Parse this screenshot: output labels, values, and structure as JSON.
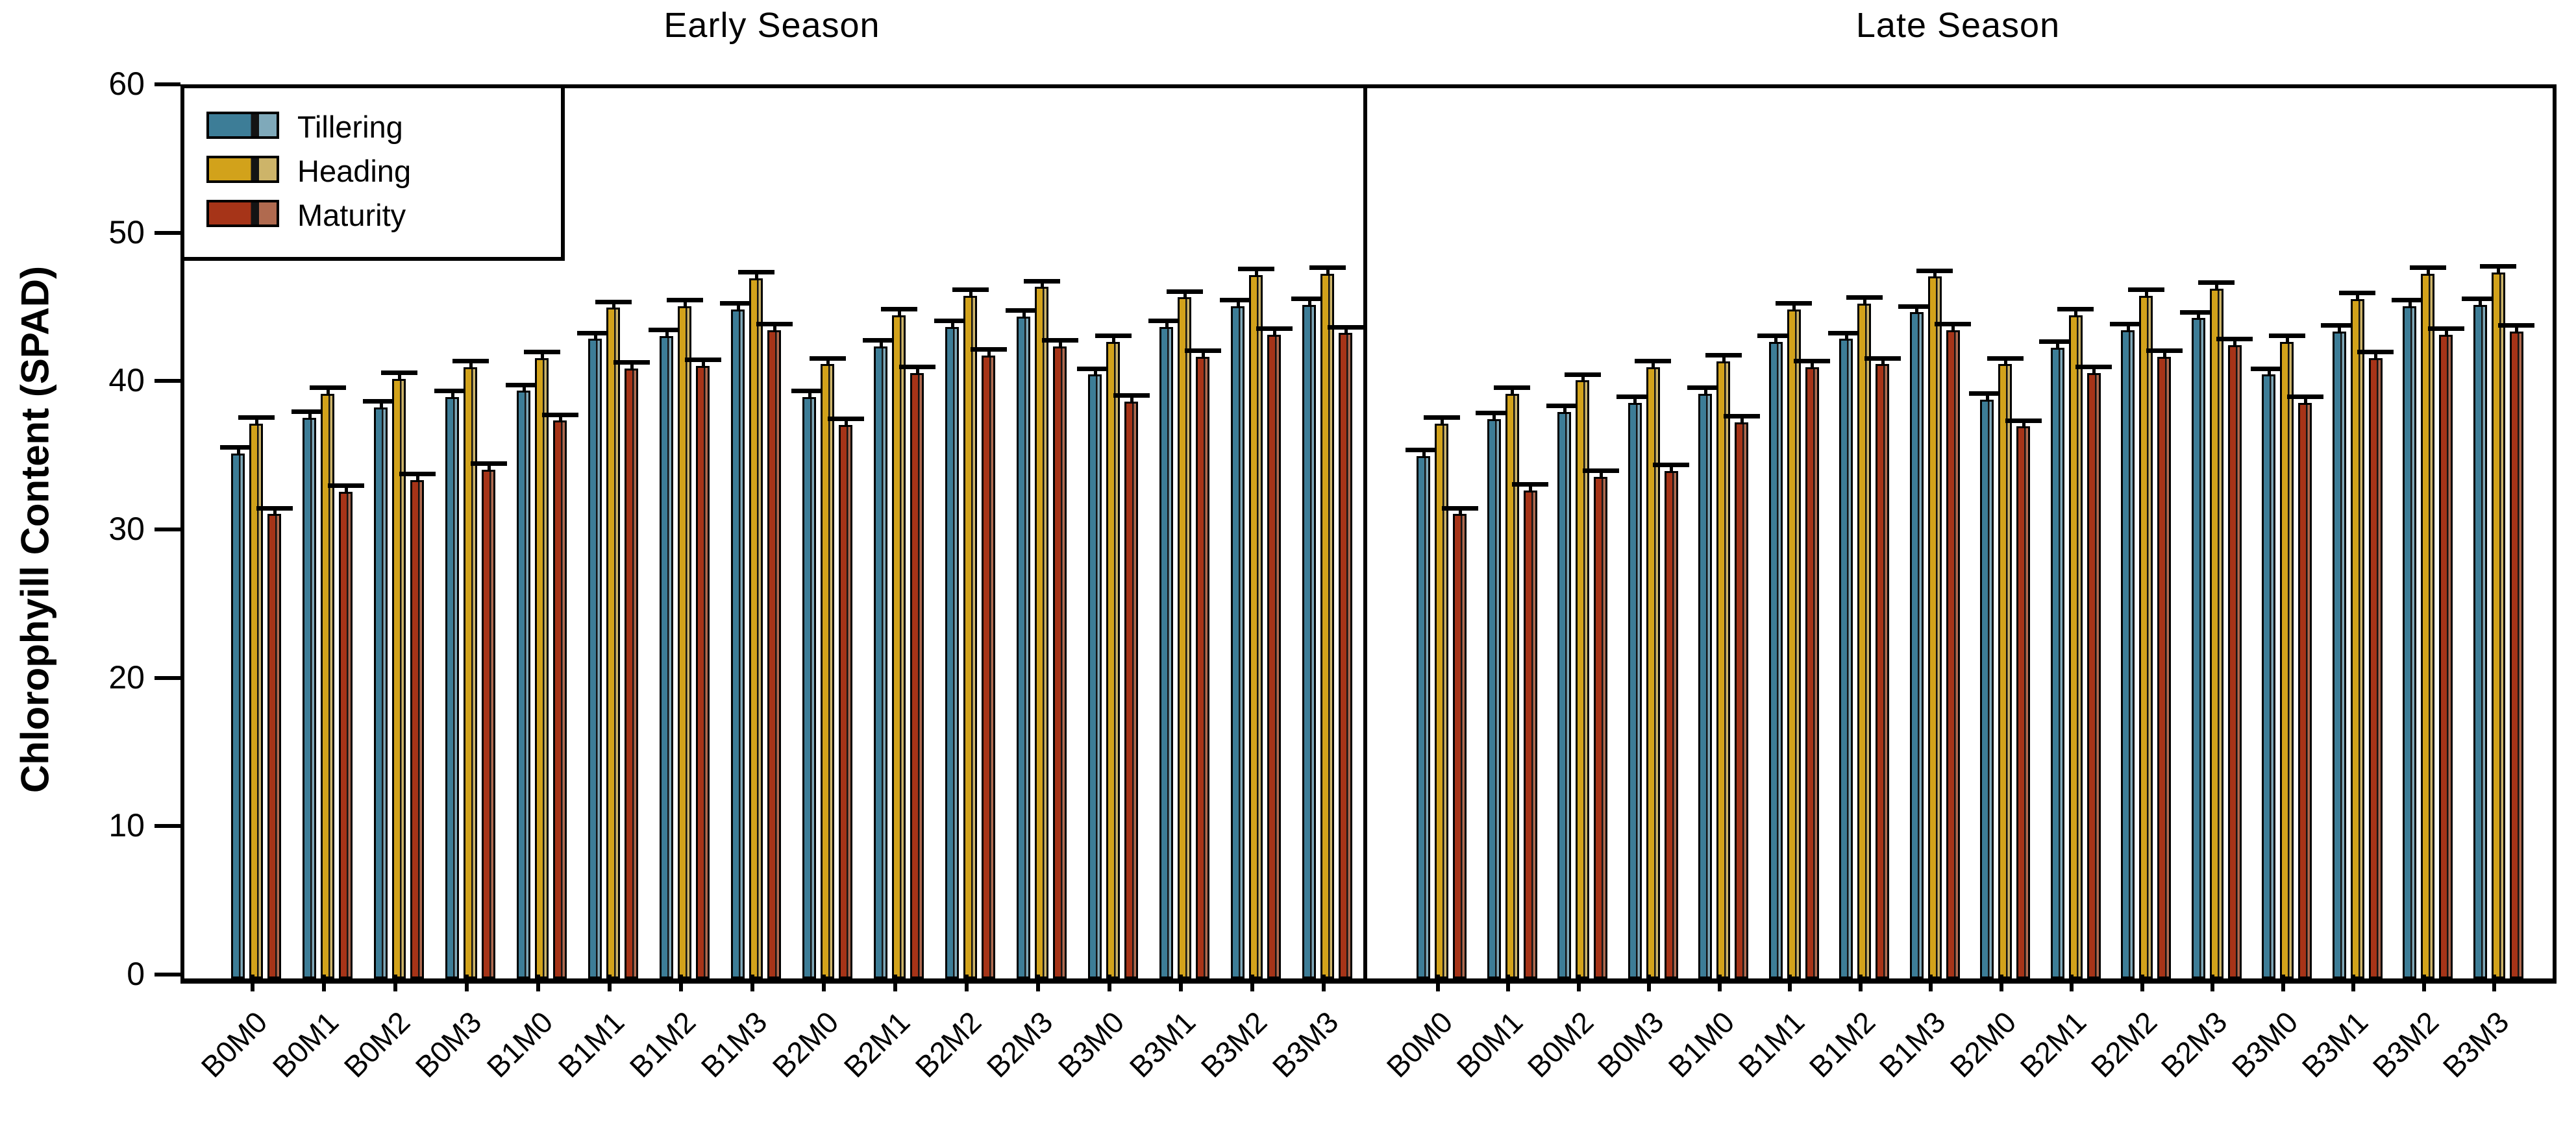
{
  "figure": {
    "ylabel": "Chlorophyill Content (SPAD)",
    "panel_titles": {
      "left": "Early Season",
      "right": "Late Season"
    }
  },
  "legend": {
    "items": [
      {
        "label": "Tillering",
        "color": "#3d7d97"
      },
      {
        "label": "Heading",
        "color": "#d2a21b"
      },
      {
        "label": "Maturity",
        "color": "#a63418"
      }
    ]
  },
  "colors": {
    "tillering": "#3d7d97",
    "tillering_light": "#7fa9ba",
    "heading": "#d2a21b",
    "heading_light": "#cdb469",
    "maturity": "#a63418",
    "maturity_light": "#b06a4f",
    "outline": "#000000",
    "inner_line": "#141414"
  },
  "chart_data": {
    "type": "bar",
    "ylabel": "Chlorophyill Content (SPAD)",
    "ylim": [
      0,
      60
    ],
    "yticks": [
      0,
      10,
      20,
      30,
      40,
      50,
      60
    ],
    "grid": false,
    "legend_position": "top-left",
    "error_bar_up": 0.25,
    "categories": [
      "B0M0",
      "B0M1",
      "B0M2",
      "B0M3",
      "B1M0",
      "B1M1",
      "B1M2",
      "B1M3",
      "B2M0",
      "B2M1",
      "B2M2",
      "B2M3",
      "B3M0",
      "B3M1",
      "B3M2",
      "B3M3"
    ],
    "panels": [
      {
        "title": "Early Season",
        "series": [
          {
            "name": "Tillering",
            "values": [
              35.4,
              37.8,
              38.5,
              39.2,
              39.6,
              43.1,
              43.3,
              45.1,
              39.2,
              42.6,
              43.9,
              44.6,
              40.7,
              43.9,
              45.3,
              45.4
            ]
          },
          {
            "name": "Heading",
            "values": [
              37.4,
              39.4,
              40.4,
              41.2,
              41.8,
              45.2,
              45.3,
              47.2,
              41.4,
              44.7,
              46.0,
              46.6,
              42.9,
              45.9,
              47.4,
              47.5
            ]
          },
          {
            "name": "Maturity",
            "values": [
              31.3,
              32.8,
              33.6,
              34.3,
              37.6,
              41.1,
              41.3,
              43.7,
              37.3,
              40.8,
              42.0,
              42.6,
              38.9,
              41.9,
              43.4,
              43.5
            ]
          }
        ]
      },
      {
        "title": "Late Season",
        "series": [
          {
            "name": "Tillering",
            "values": [
              35.2,
              37.7,
              38.2,
              38.8,
              39.4,
              42.9,
              43.1,
              44.9,
              39.0,
              42.5,
              43.7,
              44.5,
              40.7,
              43.6,
              45.3,
              45.4
            ]
          },
          {
            "name": "Heading",
            "values": [
              37.4,
              39.4,
              40.3,
              41.2,
              41.6,
              45.1,
              45.5,
              47.3,
              41.4,
              44.7,
              46.0,
              46.5,
              42.9,
              45.8,
              47.5,
              47.6
            ]
          },
          {
            "name": "Maturity",
            "values": [
              31.3,
              32.9,
              33.8,
              34.2,
              37.5,
              41.2,
              41.4,
              43.7,
              37.2,
              40.8,
              41.9,
              42.7,
              38.8,
              41.8,
              43.4,
              43.6
            ]
          }
        ]
      }
    ]
  }
}
